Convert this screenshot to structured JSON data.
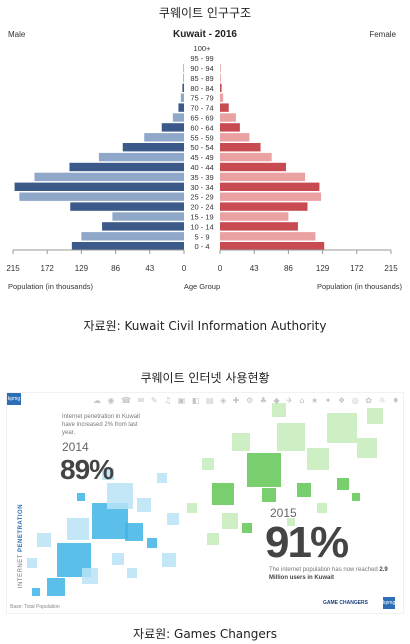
{
  "section1": {
    "title": "쿠웨이트 인구구조",
    "source": "자료원: Kuwait Civil Information Authority"
  },
  "section2": {
    "title": "쿠웨이트 인터넷 사용현황",
    "source": "자료원: Games Changers"
  },
  "chart_data": [
    {
      "type": "bar",
      "orientation": "horizontal-pyramid",
      "title": "Kuwait - 2016",
      "left_label": "Male",
      "right_label": "Female",
      "xlabel_left": "Population (in thousands)",
      "xlabel_center": "Age Group",
      "xlabel_right": "Population (in thousands)",
      "xlim": [
        0,
        215
      ],
      "x_ticks": [
        "215",
        "172",
        "129",
        "86",
        "43",
        "0",
        "0",
        "43",
        "86",
        "129",
        "172",
        "215"
      ],
      "categories": [
        "100+",
        "95 - 99",
        "90 - 94",
        "85 - 89",
        "80 - 84",
        "75 - 79",
        "70 - 74",
        "65 - 69",
        "60 - 64",
        "55 - 59",
        "50 - 54",
        "45 - 49",
        "40 - 44",
        "35 - 39",
        "30 - 34",
        "25 - 29",
        "20 - 24",
        "15 - 19",
        "10 - 14",
        "5 - 9",
        "0 - 4"
      ],
      "series": [
        {
          "name": "Male",
          "values": [
            0,
            0,
            0.5,
            1,
            2,
            4,
            7,
            14,
            28,
            50,
            77,
            107,
            144,
            188,
            213,
            207,
            143,
            90,
            103,
            129,
            141
          ]
        },
        {
          "name": "Female",
          "values": [
            0,
            0,
            0.5,
            1,
            2,
            4,
            11,
            20,
            25,
            37,
            51,
            65,
            83,
            107,
            125,
            127,
            110,
            86,
            98,
            120,
            131
          ]
        }
      ],
      "colors": {
        "male": "#8fa7c9",
        "male_dark": "#3b5a8a",
        "female": "#eaa1a1",
        "female_dark": "#c94b52"
      }
    },
    {
      "type": "table",
      "title": "INTERNET PENETRATION",
      "rows": [
        {
          "year": "2014",
          "value": "89%"
        },
        {
          "year": "2015",
          "value": "91%"
        }
      ]
    }
  ],
  "infographic": {
    "brand_top": "kpmg",
    "brand_bottom": "kpmg",
    "desc_2014": "Internet penetration in Kuwait have increased 2% from last year.",
    "year_2014": "2014",
    "pct_2014": "89%",
    "year_2015": "2015",
    "pct_2015": "91%",
    "desc_2015_a": "The internet population has now reached ",
    "desc_2015_b": "2.9 Million users in Kuwait",
    "vertical_label_a": "INTERNET ",
    "vertical_label_b": "PENETRATION",
    "base_note": "Base: Total Population",
    "partner": "GAME CHANGERS",
    "icons": "☁ ◉ ☎ ✉ ✎ ♫ ▣ ◧ ▤ ◈ ✚ ⚙ ♣ ◆ ✈ ⌂ ★ ✦ ❖ ◎ ✿ ☼ ♦",
    "colors": {
      "blue": "#3fb4e6",
      "blue_light": "#b9e3f6",
      "green": "#61c653",
      "green_light": "#c4ecb9"
    }
  }
}
